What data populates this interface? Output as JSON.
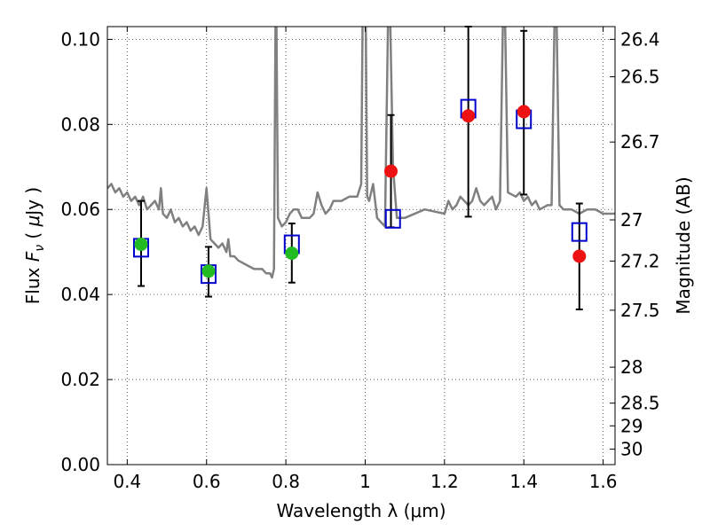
{
  "chart_data": {
    "type": "scatter",
    "xlabel": "Wavelength  λ (μm)",
    "ylabel": "Flux  F_ν  ( μJy )",
    "ylabel_parts": {
      "pre": "Flux  ",
      "sym": "F",
      "sub": "ν",
      "mid": "  (  ",
      "mu": "μ",
      "post": "Jy )"
    },
    "y2label": "Magnitude (AB)",
    "xlim": [
      0.35,
      1.63
    ],
    "ylim": [
      0.0,
      0.103
    ],
    "grid": true,
    "x_ticks": [
      {
        "value": 0.4,
        "label": "0.4"
      },
      {
        "value": 0.6,
        "label": "0.6"
      },
      {
        "value": 0.8,
        "label": "0.8"
      },
      {
        "value": 1.0,
        "label": "1"
      },
      {
        "value": 1.2,
        "label": "1.2"
      },
      {
        "value": 1.4,
        "label": "1.4"
      },
      {
        "value": 1.6,
        "label": "1.6"
      }
    ],
    "y_ticks": [
      {
        "value": 0.0,
        "label": "0.00"
      },
      {
        "value": 0.02,
        "label": "0.02"
      },
      {
        "value": 0.04,
        "label": "0.04"
      },
      {
        "value": 0.06,
        "label": "0.06"
      },
      {
        "value": 0.08,
        "label": "0.08"
      },
      {
        "value": 0.1,
        "label": "0.10"
      }
    ],
    "y2_ticks": [
      {
        "mag": 26.4,
        "label": "26.4"
      },
      {
        "mag": 26.5,
        "label": "26.5"
      },
      {
        "mag": 26.7,
        "label": "26.7"
      },
      {
        "mag": 27.0,
        "label": "27"
      },
      {
        "mag": 27.2,
        "label": "27.2"
      },
      {
        "mag": 27.5,
        "label": "27.5"
      },
      {
        "mag": 28.0,
        "label": "28"
      },
      {
        "mag": 28.5,
        "label": "28.5"
      },
      {
        "mag": 29.0,
        "label": "29"
      },
      {
        "mag": 30.0,
        "label": "30"
      }
    ],
    "series": [
      {
        "kind": "spectrum",
        "color": "#808080",
        "x": [
          0.35,
          0.36,
          0.37,
          0.38,
          0.39,
          0.4,
          0.41,
          0.42,
          0.43,
          0.44,
          0.45,
          0.46,
          0.47,
          0.48,
          0.485,
          0.49,
          0.5,
          0.51,
          0.52,
          0.53,
          0.54,
          0.55,
          0.56,
          0.57,
          0.58,
          0.59,
          0.6,
          0.61,
          0.62,
          0.63,
          0.64,
          0.65,
          0.655,
          0.66,
          0.67,
          0.68,
          0.7,
          0.72,
          0.74,
          0.75,
          0.76,
          0.765,
          0.77,
          0.775,
          0.78,
          0.79,
          0.8,
          0.81,
          0.82,
          0.83,
          0.84,
          0.85,
          0.86,
          0.87,
          0.88,
          0.89,
          0.9,
          0.91,
          0.92,
          0.94,
          0.96,
          0.98,
          0.99,
          0.995,
          1.0,
          1.005,
          1.01,
          1.02,
          1.03,
          1.04,
          1.05,
          1.06,
          1.07,
          1.08,
          1.1,
          1.15,
          1.2,
          1.21,
          1.22,
          1.23,
          1.24,
          1.25,
          1.26,
          1.27,
          1.28,
          1.29,
          1.3,
          1.31,
          1.32,
          1.33,
          1.34,
          1.35,
          1.36,
          1.38,
          1.39,
          1.4,
          1.41,
          1.42,
          1.43,
          1.44,
          1.46,
          1.47,
          1.48,
          1.49,
          1.5,
          1.52,
          1.54,
          1.56,
          1.58,
          1.6,
          1.62,
          1.63
        ],
        "y": [
          0.065,
          0.066,
          0.064,
          0.065,
          0.063,
          0.064,
          0.062,
          0.063,
          0.061,
          0.063,
          0.06,
          0.061,
          0.062,
          0.06,
          0.065,
          0.059,
          0.058,
          0.06,
          0.057,
          0.058,
          0.056,
          0.057,
          0.055,
          0.056,
          0.054,
          0.056,
          0.065,
          0.053,
          0.052,
          0.051,
          0.052,
          0.05,
          0.053,
          0.049,
          0.049,
          0.048,
          0.047,
          0.046,
          0.046,
          0.045,
          0.045,
          0.044,
          0.046,
          0.12,
          0.058,
          0.056,
          0.057,
          0.059,
          0.06,
          0.06,
          0.058,
          0.058,
          0.058,
          0.059,
          0.064,
          0.061,
          0.059,
          0.06,
          0.062,
          0.062,
          0.063,
          0.063,
          0.066,
          0.12,
          0.12,
          0.063,
          0.062,
          0.066,
          0.058,
          0.057,
          0.056,
          0.12,
          0.07,
          0.058,
          0.058,
          0.06,
          0.059,
          0.062,
          0.06,
          0.061,
          0.063,
          0.062,
          0.061,
          0.062,
          0.065,
          0.062,
          0.061,
          0.062,
          0.063,
          0.06,
          0.062,
          0.12,
          0.064,
          0.063,
          0.064,
          0.062,
          0.063,
          0.061,
          0.062,
          0.06,
          0.061,
          0.061,
          0.12,
          0.061,
          0.06,
          0.06,
          0.059,
          0.06,
          0.06,
          0.059,
          0.059,
          0.059
        ]
      },
      {
        "kind": "errorbar",
        "color": "#000000",
        "points": [
          {
            "x": 0.435,
            "lo": 0.042,
            "hi": 0.062
          },
          {
            "x": 0.605,
            "lo": 0.0395,
            "hi": 0.0512
          },
          {
            "x": 0.815,
            "lo": 0.0428,
            "hi": 0.0567
          },
          {
            "x": 1.065,
            "lo": 0.0558,
            "hi": 0.0822
          },
          {
            "x": 1.26,
            "lo": 0.0583,
            "hi": 0.103
          },
          {
            "x": 1.4,
            "lo": 0.0635,
            "hi": 0.102
          },
          {
            "x": 1.54,
            "lo": 0.0365,
            "hi": 0.0614
          }
        ]
      },
      {
        "kind": "square",
        "color": "#0000cc",
        "x": [
          0.435,
          0.605,
          0.815,
          1.07,
          1.26,
          1.4,
          1.54
        ],
        "y": [
          0.051,
          0.0448,
          0.0518,
          0.0578,
          0.0837,
          0.0812,
          0.0547
        ]
      },
      {
        "kind": "dot",
        "color": "#22bb22",
        "x": [
          0.435,
          0.605,
          0.815
        ],
        "y": [
          0.0518,
          0.0455,
          0.0497
        ]
      },
      {
        "kind": "dot",
        "color": "#ee1111",
        "x": [
          1.065,
          1.26,
          1.4,
          1.54
        ],
        "y": [
          0.069,
          0.082,
          0.083,
          0.049
        ]
      }
    ]
  }
}
